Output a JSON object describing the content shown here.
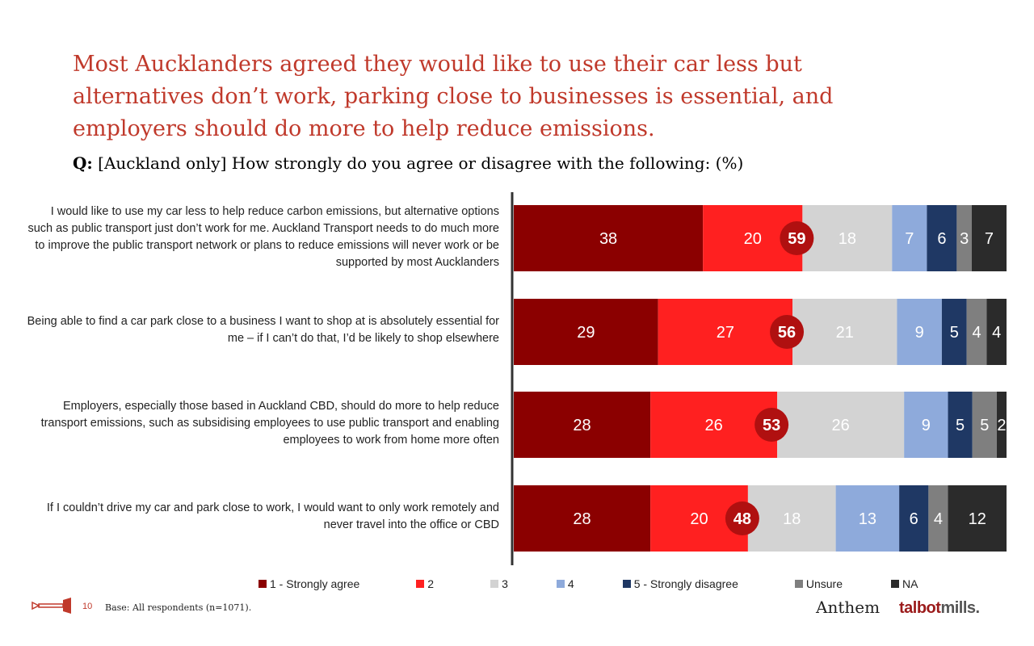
{
  "header": {
    "title": "Most Aucklanders agreed they would like to use their car less but alternatives don’t work, parking close to businesses is essential, and employers should do more to help reduce emissions.",
    "question_prefix": "Q:",
    "question_text": "[Auckland only] How strongly do you agree or disagree with the following: (%)"
  },
  "chart_data": {
    "type": "bar",
    "orientation": "horizontal",
    "stacked": true,
    "categories": [
      "I would like to use my car less to help reduce carbon emissions, but alternative options such as public transport just don’t work for me. Auckland Transport needs to do much more to improve the public transport network or plans to reduce emissions will never work or be supported by most Aucklanders",
      "Being able to find a car park close to a business I want to shop at is absolutely essential for me – if I can’t do that, I’d be likely to shop elsewhere",
      "Employers, especially those based in Auckland CBD, should do more to help reduce transport emissions, such as subsidising employees to use public transport and enabling employees to work from home more often",
      "If I couldn’t drive my car and park close to work, I would want to only work remotely and never travel into the office or CBD"
    ],
    "series": [
      {
        "name": "1 - Strongly agree",
        "color": "#8b0000",
        "values": [
          38,
          29,
          28,
          28
        ]
      },
      {
        "name": "2",
        "color": "#ff2020",
        "values": [
          20,
          27,
          26,
          20
        ]
      },
      {
        "name": "3",
        "color": "#d3d3d3",
        "values": [
          18,
          21,
          26,
          18
        ]
      },
      {
        "name": "4",
        "color": "#8eaadb",
        "values": [
          7,
          9,
          9,
          13
        ]
      },
      {
        "name": "5 - Strongly disagree",
        "color": "#1f3864",
        "values": [
          6,
          5,
          5,
          6
        ]
      },
      {
        "name": "Unsure",
        "color": "#7f7f7f",
        "values": [
          3,
          4,
          5,
          4
        ]
      },
      {
        "name": "NA",
        "color": "#2b2b2b",
        "values": [
          7,
          4,
          2,
          12
        ]
      }
    ],
    "net_agree": [
      59,
      56,
      53,
      48
    ],
    "legend_position": "bottom",
    "grid": false
  },
  "footer": {
    "page_number": "10",
    "base": "Base: All respondents (n=1071).",
    "logo_anthem": "Anthem",
    "logo_talbot": "talbot",
    "logo_mills": "mills."
  },
  "colors": {
    "title": "#c0392b",
    "net_circle": "#b01010"
  }
}
